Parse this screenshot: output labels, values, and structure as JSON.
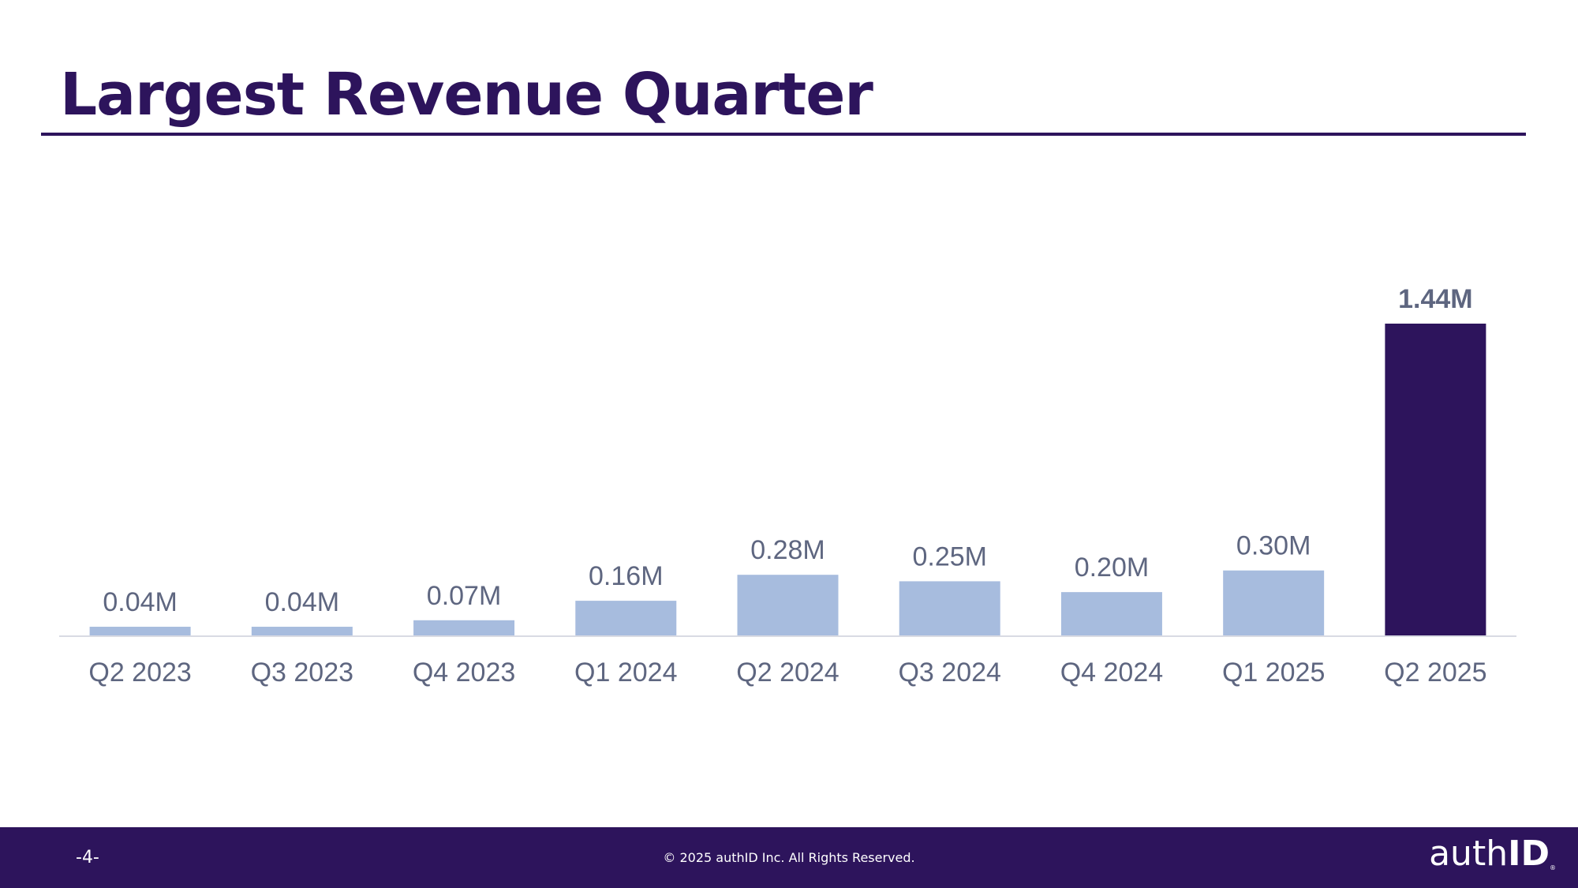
{
  "slide": {
    "title": "Largest Revenue Quarter"
  },
  "chart_data": {
    "type": "bar",
    "title": "Largest Revenue Quarter",
    "xlabel": "",
    "ylabel": "",
    "unit": "M",
    "ylim": [
      0,
      1.6
    ],
    "grid": false,
    "categories": [
      "Q2 2023",
      "Q3 2023",
      "Q4 2023",
      "Q1 2024",
      "Q2 2024",
      "Q3 2024",
      "Q4 2024",
      "Q1 2025",
      "Q2 2025"
    ],
    "values": [
      0.04,
      0.04,
      0.07,
      0.16,
      0.28,
      0.25,
      0.2,
      0.3,
      1.44
    ],
    "labels": [
      "0.04M",
      "0.04M",
      "0.07M",
      "0.16M",
      "0.28M",
      "0.25M",
      "0.20M",
      "0.30M",
      "1.44M"
    ],
    "highlight_index": 8,
    "colors": {
      "bar": "#a7bcde",
      "highlight": "#2d145c",
      "label": "#5e6680",
      "axis": "#d9dbe3"
    }
  },
  "footer": {
    "page": "-4-",
    "copyright": "© 2025 authID Inc. All Rights Reserved.",
    "logo_light": "auth",
    "logo_bold": "ID",
    "logo_mark": "®"
  }
}
